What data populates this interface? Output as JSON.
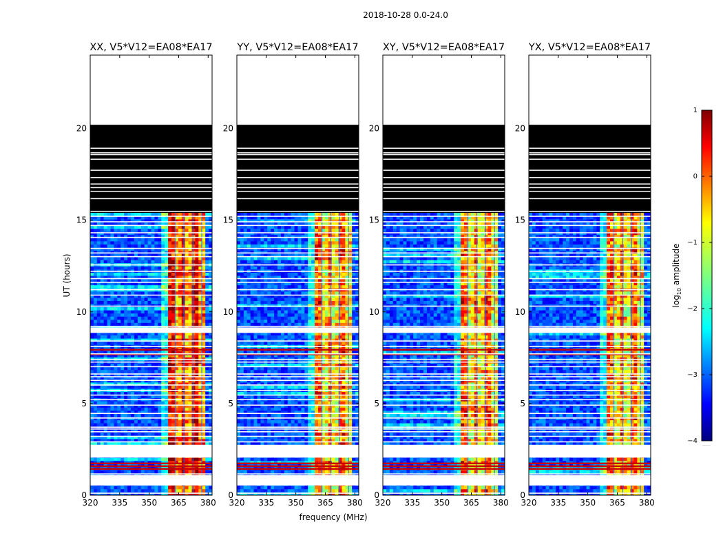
{
  "figure": {
    "suptitle": "2018-10-28 0.0-24.0",
    "xlabel": "frequency (MHz)",
    "ylabel": "UT (hours)"
  },
  "colorbar": {
    "label_prefix": "log",
    "label_sub": "10",
    "label_suffix": " amplitude",
    "range": [
      -4,
      1
    ],
    "ticks": [
      1,
      0,
      -1,
      -2,
      -3,
      -4
    ],
    "tick_labels": [
      "1",
      "0",
      "−1",
      "−2",
      "−3",
      "−4"
    ],
    "extra_label": "......",
    "colormap": "jet",
    "colors": [
      "#00007f",
      "#0000ff",
      "#007fff",
      "#00ffff",
      "#7fff7f",
      "#ffff00",
      "#ff7f00",
      "#ff0000",
      "#7f0000"
    ]
  },
  "chart_data": [
    {
      "type": "heatmap",
      "title": "XX, V5*V12=EA08*EA17",
      "xlim": [
        320,
        382
      ],
      "ylim": [
        0,
        24
      ],
      "xticks": [
        320,
        335,
        350,
        365,
        380
      ],
      "xtick_labels": [
        "320",
        "335",
        "350",
        "365",
        "380"
      ],
      "yticks": [
        0,
        5,
        10,
        15,
        20
      ],
      "ytick_labels": [
        "0",
        "5",
        "10",
        "15",
        "20"
      ],
      "band_start_mhz": 360,
      "band_end_mhz": 378,
      "typical_log_amplitude": {
        "quiet_band": -3,
        "active_band": 0
      },
      "black_region_hours": [
        15.4,
        20.2
      ],
      "empty_region_hours": [
        20.2,
        24
      ]
    },
    {
      "type": "heatmap",
      "title": "YY, V5*V12=EA08*EA17",
      "xlim": [
        320,
        382
      ],
      "ylim": [
        0,
        24
      ],
      "xticks": [
        320,
        335,
        350,
        365,
        380
      ],
      "xtick_labels": [
        "320",
        "335",
        "350",
        "365",
        "380"
      ],
      "yticks": [
        0,
        5,
        10,
        15,
        20
      ],
      "ytick_labels": [
        "0",
        "5",
        "10",
        "15",
        "20"
      ],
      "band_start_mhz": 360,
      "band_end_mhz": 378,
      "typical_log_amplitude": {
        "quiet_band": -3,
        "active_band": -0.5
      },
      "black_region_hours": [
        15.4,
        20.2
      ],
      "empty_region_hours": [
        20.2,
        24
      ]
    },
    {
      "type": "heatmap",
      "title": "XY, V5*V12=EA08*EA17",
      "xlim": [
        320,
        382
      ],
      "ylim": [
        0,
        24
      ],
      "xticks": [
        320,
        335,
        350,
        365,
        380
      ],
      "xtick_labels": [
        "320",
        "335",
        "350",
        "365",
        "380"
      ],
      "yticks": [
        0,
        5,
        10,
        15,
        20
      ],
      "ytick_labels": [
        "0",
        "5",
        "10",
        "15",
        "20"
      ],
      "band_start_mhz": 360,
      "band_end_mhz": 378,
      "typical_log_amplitude": {
        "quiet_band": -3,
        "active_band": -0.5
      },
      "black_region_hours": [
        15.4,
        20.2
      ],
      "empty_region_hours": [
        20.2,
        24
      ]
    },
    {
      "type": "heatmap",
      "title": "YX, V5*V12=EA08*EA17",
      "xlim": [
        320,
        382
      ],
      "ylim": [
        0,
        24
      ],
      "xticks": [
        320,
        335,
        350,
        365,
        380
      ],
      "xtick_labels": [
        "320",
        "335",
        "350",
        "365",
        "380"
      ],
      "yticks": [
        0,
        5,
        10,
        15,
        20
      ],
      "ytick_labels": [
        "0",
        "5",
        "10",
        "15",
        "20"
      ],
      "band_start_mhz": 360,
      "band_end_mhz": 378,
      "typical_log_amplitude": {
        "quiet_band": -3,
        "active_band": -0.5
      },
      "black_region_hours": [
        15.4,
        20.2
      ],
      "empty_region_hours": [
        20.2,
        24
      ]
    }
  ],
  "flagged_hours": [
    0.1,
    0.55,
    0.9,
    1.05,
    1.15,
    2.1,
    2.2,
    2.3,
    2.4,
    2.5,
    2.6,
    2.7,
    2.9,
    3.2,
    3.45,
    3.6,
    3.7,
    4.2,
    4.45,
    4.9,
    5.2,
    5.45,
    5.7,
    6.0,
    6.25,
    6.45,
    6.6,
    7.0,
    7.25,
    7.4,
    7.7,
    8.1,
    8.4,
    8.95,
    9.1,
    9.2,
    10.3,
    10.9,
    11.2,
    11.6,
    11.8,
    12.2,
    12.55,
    13.0,
    13.2,
    13.45,
    14.05,
    14.3,
    14.7,
    14.9,
    15.2
  ],
  "black_band_white_lines_hours": [
    15.5,
    16.2,
    16.6,
    16.8,
    17.0,
    17.35,
    17.75,
    18.35,
    18.6,
    18.7,
    18.95
  ],
  "strong_rfi_hours": [
    1.4,
    1.55,
    1.7,
    7.65,
    7.9
  ]
}
